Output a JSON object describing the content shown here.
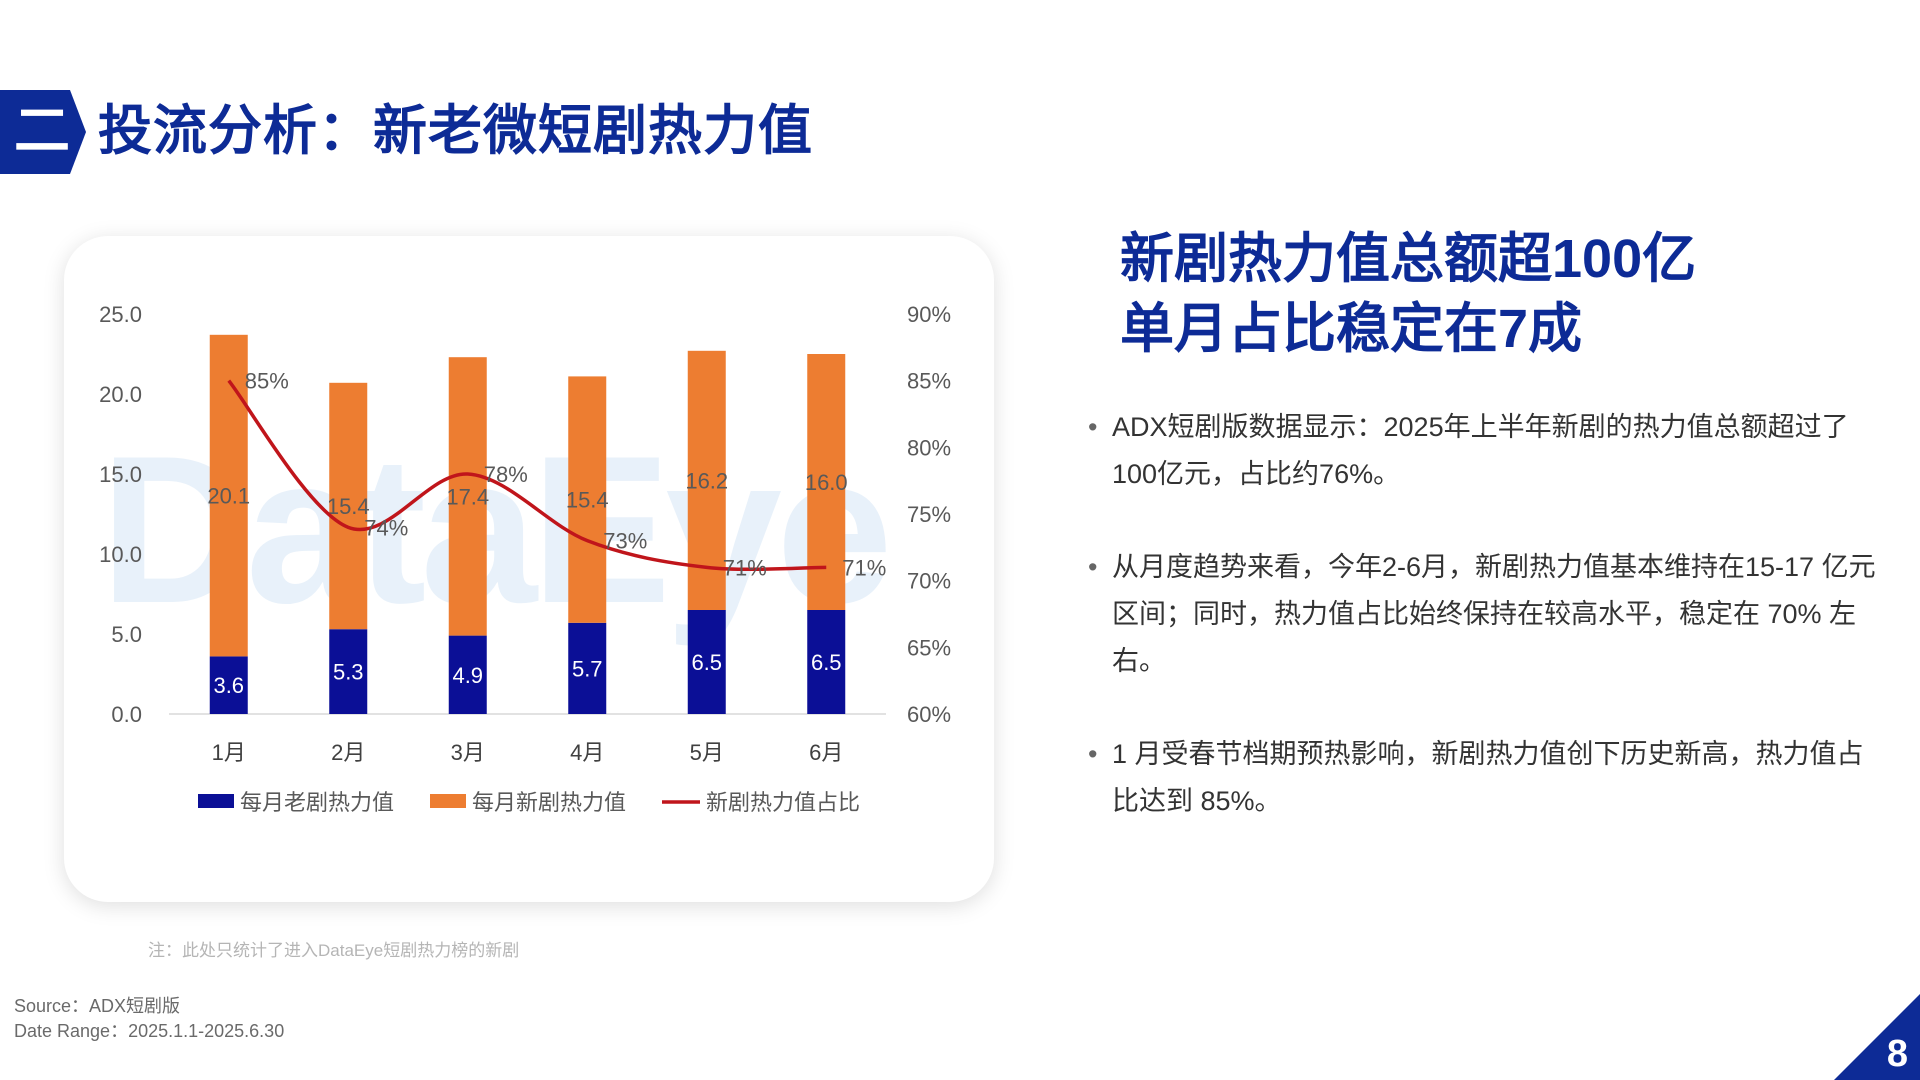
{
  "header": {
    "badge": "二",
    "title": "投流分析：新老微短剧热力值"
  },
  "summary": {
    "heading_line1": "新剧热力值总额超100亿",
    "heading_line2": "单月占比稳定在7成",
    "bullets": [
      "ADX短剧版数据显示：2025年上半年新剧的热力值总额超过了100亿元，占比约76%。",
      "从月度趋势来看，今年2-6月，新剧热力值基本维持在15-17 亿元区间；同时，热力值占比始终保持在较高水平，稳定在 70% 左右。",
      "1 月受春节档期预热影响，新剧热力值创下历史新高，热力值占比达到 85%。"
    ]
  },
  "note": "注：此处只统计了进入DataEye短剧热力榜的新剧",
  "source": {
    "line1": "Source：ADX短剧版",
    "line2": "Date Range：2025.1.1-2025.6.30"
  },
  "page_number": "8",
  "watermark": "DataEye",
  "colors": {
    "primary": "#0d2b96",
    "old_bar": "#0b0f96",
    "new_bar": "#ed7d31",
    "line": "#c0151b"
  },
  "chart_data": {
    "type": "bar",
    "stacked": true,
    "categories": [
      "1月",
      "2月",
      "3月",
      "4月",
      "5月",
      "6月"
    ],
    "series": [
      {
        "name": "每月老剧热力值",
        "kind": "bar",
        "axis": "left",
        "values": [
          3.6,
          5.3,
          4.9,
          5.7,
          6.5,
          6.5
        ],
        "labels": [
          "3.6",
          "5.3",
          "4.9",
          "5.7",
          "6.5",
          "6.5"
        ]
      },
      {
        "name": "每月新剧热力值",
        "kind": "bar",
        "axis": "left",
        "values": [
          20.1,
          15.4,
          17.4,
          15.4,
          16.2,
          16.0
        ],
        "labels": [
          "20.1",
          "15.4",
          "17.4",
          "15.4",
          "16.2",
          "16.0"
        ]
      },
      {
        "name": "新剧热力值占比",
        "kind": "line",
        "axis": "right",
        "values": [
          85,
          74,
          78,
          73,
          71,
          71
        ],
        "labels": [
          "85%",
          "74%",
          "78%",
          "73%",
          "71%",
          "71%"
        ]
      }
    ],
    "y_left": {
      "range": [
        0,
        25
      ],
      "ticks": [
        "0.0",
        "5.0",
        "10.0",
        "15.0",
        "20.0",
        "25.0"
      ]
    },
    "y_right": {
      "range": [
        60,
        90
      ],
      "ticks": [
        "60%",
        "65%",
        "70%",
        "75%",
        "80%",
        "85%",
        "90%"
      ]
    },
    "legend_position": "bottom",
    "grid": false
  }
}
